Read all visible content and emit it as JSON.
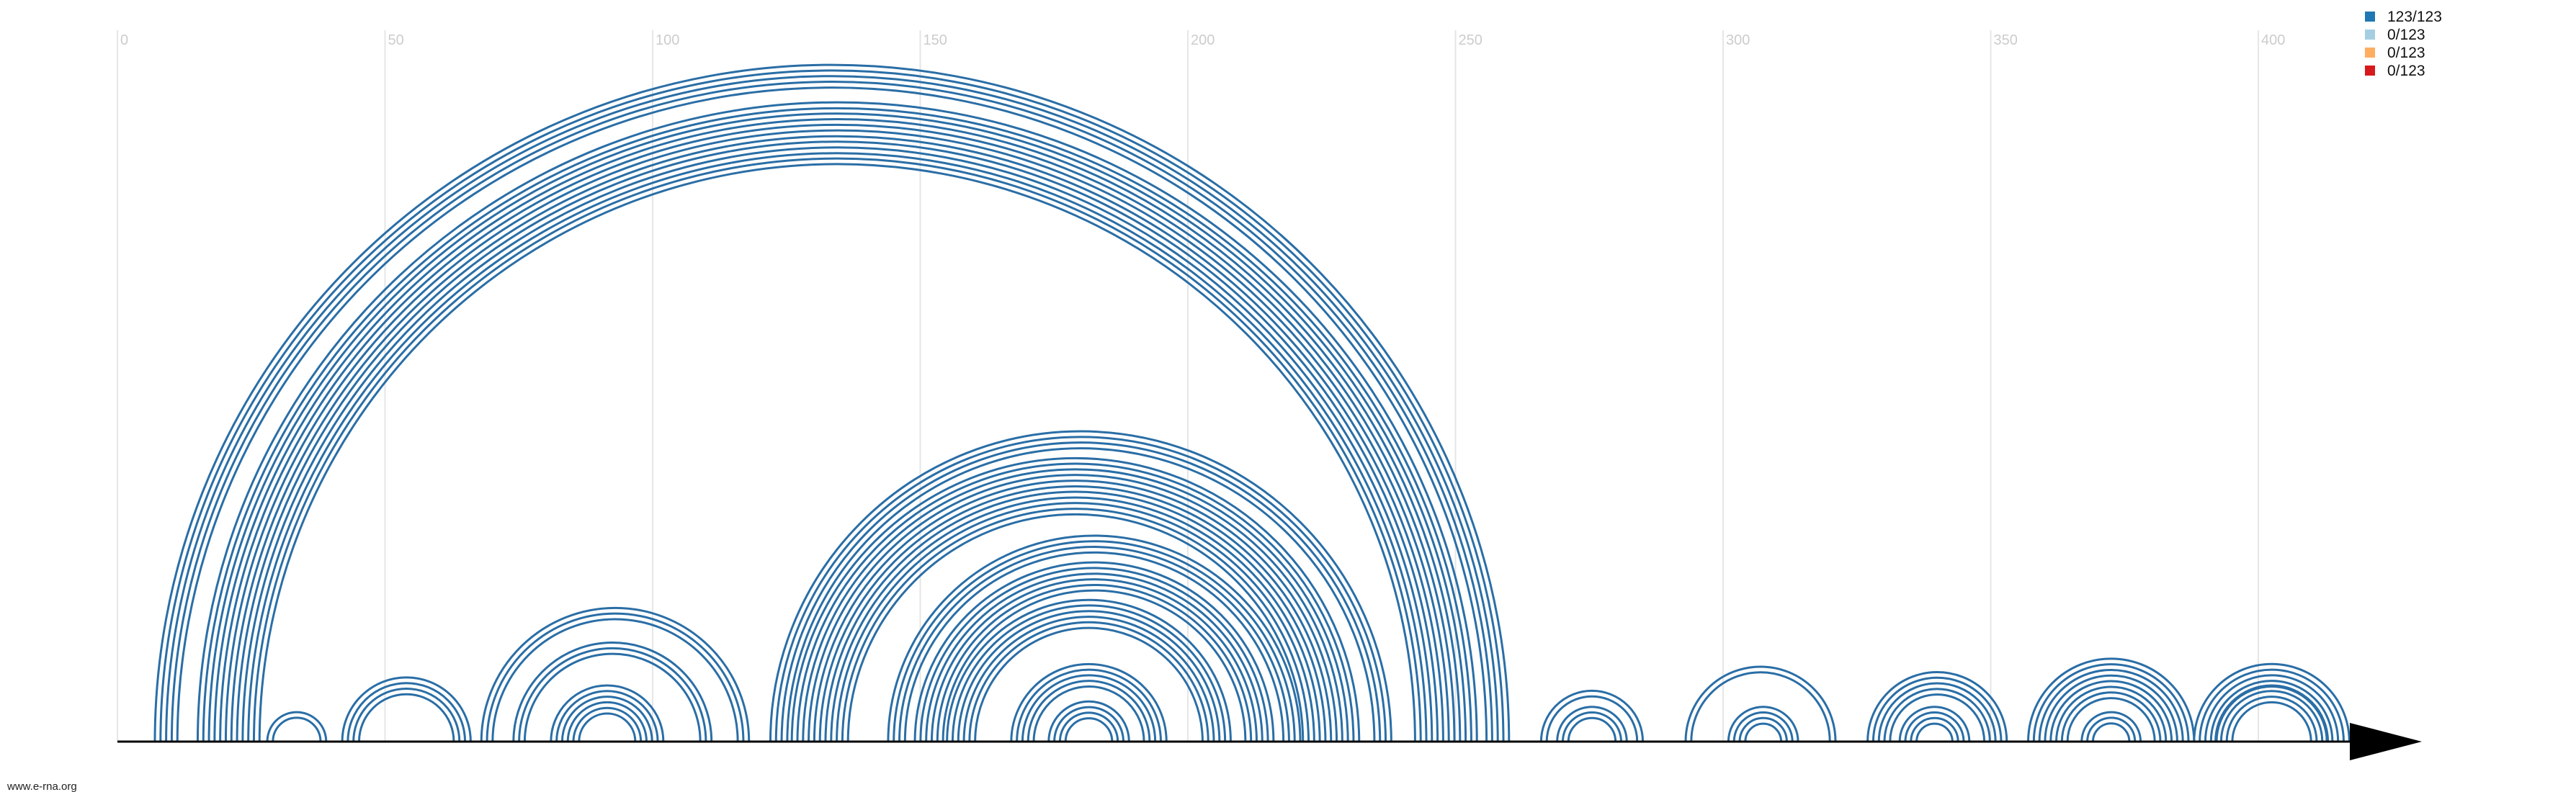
{
  "credit": "www.e-rna.org",
  "colors": {
    "arc": "#2a6ea6",
    "axis": "#000000",
    "grid": "#e6e6e6",
    "tick_text": "#cccccc"
  },
  "ticks": [
    "0",
    "50",
    "100",
    "150",
    "200",
    "250",
    "300",
    "350",
    "400"
  ],
  "legend": [
    {
      "label": "123/123",
      "color": "#1f78b4"
    },
    {
      "label": "0/123",
      "color": "#a6cee3"
    },
    {
      "label": "0/123",
      "color": "#fdae61"
    },
    {
      "label": "0/123",
      "color": "#d7191c"
    }
  ],
  "helices": [
    {
      "i": 7,
      "j": 260,
      "n": 5
    },
    {
      "i": 15,
      "j": 254,
      "n": 12
    },
    {
      "i": 28,
      "j": 39,
      "n": 2
    },
    {
      "i": 42,
      "j": 66,
      "n": 4
    },
    {
      "i": 68,
      "j": 118,
      "n": 3
    },
    {
      "i": 74,
      "j": 111,
      "n": 3
    },
    {
      "i": 81,
      "j": 102,
      "n": 6
    },
    {
      "i": 122,
      "j": 238,
      "n": 4
    },
    {
      "i": 126,
      "j": 232,
      "n": 11
    },
    {
      "i": 144,
      "j": 221,
      "n": 4
    },
    {
      "i": 149,
      "j": 216,
      "n": 6
    },
    {
      "i": 155,
      "j": 208,
      "n": 6
    },
    {
      "i": 167,
      "j": 196,
      "n": 5
    },
    {
      "i": 174,
      "j": 189,
      "n": 4
    },
    {
      "i": 266,
      "j": 285,
      "n": 2
    },
    {
      "i": 269,
      "j": 282,
      "n": 3
    },
    {
      "i": 293,
      "j": 321,
      "n": 2
    },
    {
      "i": 301,
      "j": 314,
      "n": 4
    },
    {
      "i": 327,
      "j": 353,
      "n": 5
    },
    {
      "i": 333,
      "j": 346,
      "n": 4
    },
    {
      "i": 357,
      "j": 388,
      "n": 8
    },
    {
      "i": 367,
      "j": 378,
      "n": 3
    },
    {
      "i": 388,
      "j": 417,
      "n": 5
    },
    {
      "i": 392,
      "j": 413,
      "n": 4
    }
  ]
}
